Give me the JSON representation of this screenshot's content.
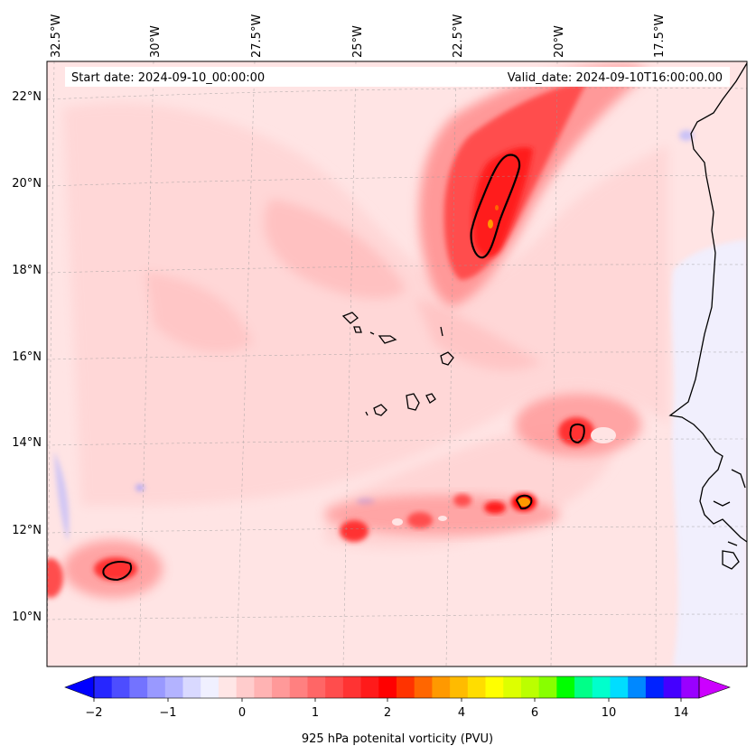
{
  "header": {
    "start_date": "Start date: 2024-09-10_00:00:00",
    "valid_date": "Valid_date: 2024-09-10T16:00:00.00"
  },
  "map": {
    "variable_label": "925 hPa potenital vorticity (PVU)",
    "lon_labels": [
      "32.5°W",
      "30°W",
      "27.5°W",
      "25°W",
      "22.5°W",
      "20°W",
      "17.5°W"
    ],
    "lat_labels": [
      "22°N",
      "20°N",
      "18°N",
      "16°N",
      "14°N",
      "12°N",
      "10°N"
    ],
    "extent": {
      "lon_min": -32.7,
      "lon_max": -15.2,
      "lat_min": 8.9,
      "lat_max": 22.8
    }
  },
  "colorbar": {
    "tick_labels": [
      "−2",
      "−1",
      "0",
      "1",
      "2",
      "4",
      "6",
      "10",
      "14"
    ],
    "colors": [
      "#0000ff",
      "#2626ff",
      "#4d4dff",
      "#7373ff",
      "#9999ff",
      "#b3b3ff",
      "#d9d9ff",
      "#f0f0ff",
      "#ffe6e6",
      "#ffcccc",
      "#ffb3b3",
      "#ff9999",
      "#ff8080",
      "#ff6666",
      "#ff4d4d",
      "#ff3333",
      "#ff1a1a",
      "#ff0000",
      "#ff3300",
      "#ff6600",
      "#ff9900",
      "#ffbb00",
      "#ffdd00",
      "#ffff00",
      "#ddff00",
      "#bbff00",
      "#88ff00",
      "#00ff00",
      "#00ff88",
      "#00ffcc",
      "#00ddff",
      "#0088ff",
      "#0022ff",
      "#4400ff",
      "#9900ff",
      "#cc00ff"
    ]
  }
}
